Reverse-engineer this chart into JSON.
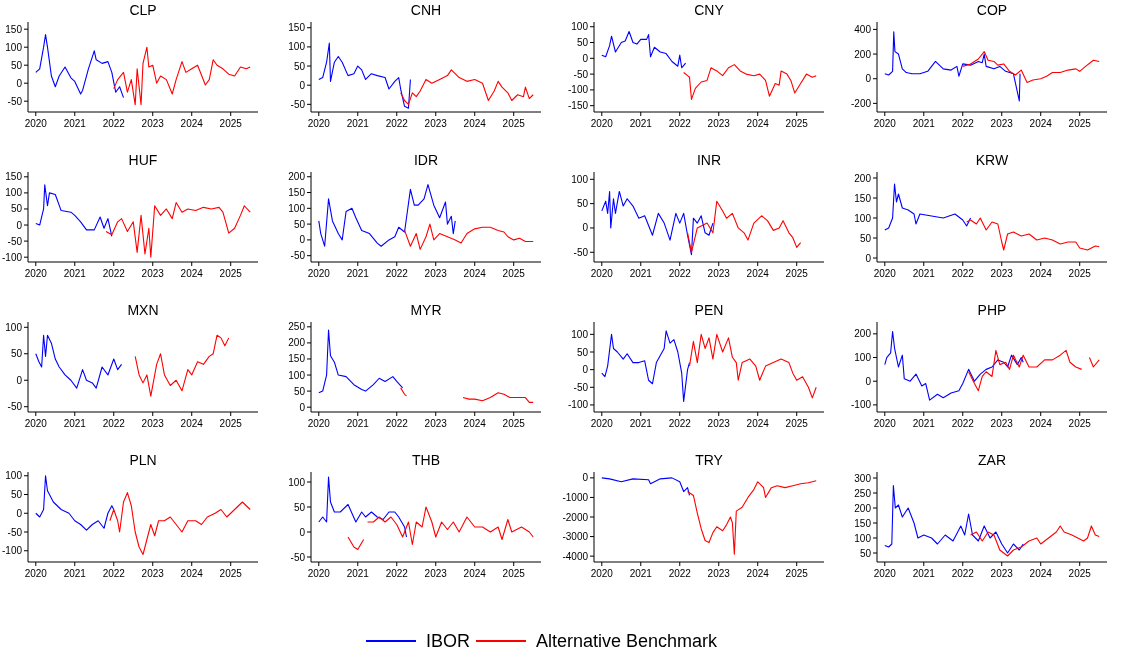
{
  "chart_data": [
    {
      "type": "line",
      "title": "CLP",
      "xlim": [
        2019.8,
        2025.7
      ],
      "xticks": [
        2020,
        2021,
        2022,
        2023,
        2024,
        2025
      ],
      "ylim": [
        -80,
        170
      ],
      "yticks": [
        -50,
        0,
        50,
        100,
        150
      ],
      "legend": "bottom",
      "series": [
        {
          "name": "IBOR",
          "color": "#0000ff",
          "x": [
            2020,
            2020.1,
            2020.2,
            2020.25,
            2020.3,
            2020.4,
            2020.5,
            2020.6,
            2020.75,
            2020.9,
            2021.0,
            2021.15,
            2021.2,
            2021.35,
            2021.5,
            2021.55,
            2021.7,
            2021.85,
            2021.95,
            2022.05,
            2022.15,
            2022.25
          ],
          "values": [
            30,
            40,
            100,
            135,
            100,
            20,
            -10,
            20,
            45,
            15,
            5,
            -30,
            -20,
            40,
            90,
            65,
            55,
            60,
            30,
            -25,
            -10,
            -40
          ]
        },
        {
          "name": "Alternative Benchmark",
          "color": "#ff0000",
          "x": [
            2022.0,
            2022.1,
            2022.25,
            2022.35,
            2022.45,
            2022.55,
            2022.6,
            2022.7,
            2022.75,
            2022.85,
            2022.9,
            2023.0,
            2023.1,
            2023.2,
            2023.35,
            2023.5,
            2023.6,
            2023.75,
            2023.85,
            2024.0,
            2024.15,
            2024.35,
            2024.45,
            2024.55,
            2024.65,
            2024.8,
            2024.95,
            2025.1,
            2025.25,
            2025.4,
            2025.5
          ],
          "values": [
            -15,
            10,
            30,
            -25,
            10,
            -60,
            40,
            -60,
            55,
            100,
            45,
            50,
            0,
            20,
            10,
            -30,
            10,
            60,
            30,
            40,
            50,
            -5,
            10,
            65,
            50,
            40,
            25,
            20,
            45,
            40,
            45
          ]
        }
      ]
    },
    {
      "type": "line",
      "title": "CNH",
      "xlim": [
        2019.8,
        2025.7
      ],
      "xticks": [
        2020,
        2021,
        2022,
        2023,
        2024,
        2025
      ],
      "ylim": [
        -70,
        165
      ],
      "yticks": [
        -50,
        0,
        50,
        100,
        150
      ],
      "series": [
        {
          "name": "IBOR",
          "color": "#0000ff",
          "x": [
            2020,
            2020.1,
            2020.2,
            2020.27,
            2020.3,
            2020.4,
            2020.5,
            2020.6,
            2020.75,
            2020.9,
            2021.0,
            2021.1,
            2021.2,
            2021.35,
            2021.5,
            2021.7,
            2021.8,
            2021.95,
            2022.05,
            2022.1,
            2022.2,
            2022.3,
            2022.35
          ],
          "values": [
            15,
            20,
            60,
            110,
            10,
            60,
            75,
            60,
            25,
            30,
            50,
            40,
            15,
            30,
            25,
            20,
            -10,
            10,
            20,
            -10,
            -55,
            -60,
            15
          ]
        },
        {
          "name": "Alternative Benchmark",
          "color": "#ff0000",
          "x": [
            2022.1,
            2022.2,
            2022.3,
            2022.4,
            2022.5,
            2022.6,
            2022.75,
            2022.9,
            2023.1,
            2023.3,
            2023.4,
            2023.6,
            2023.8,
            2024.0,
            2024.2,
            2024.35,
            2024.5,
            2024.6,
            2024.7,
            2024.85,
            2024.95,
            2025.1,
            2025.25,
            2025.3,
            2025.4,
            2025.5
          ],
          "values": [
            -20,
            -40,
            -50,
            -20,
            -30,
            -15,
            15,
            5,
            15,
            25,
            40,
            20,
            10,
            15,
            5,
            -40,
            -15,
            10,
            -5,
            -20,
            -40,
            -25,
            -30,
            -5,
            -35,
            -25
          ]
        }
      ]
    },
    {
      "type": "line",
      "title": "CNY",
      "xlim": [
        2019.8,
        2025.7
      ],
      "xticks": [
        2020,
        2021,
        2022,
        2023,
        2024,
        2025
      ],
      "ylim": [
        -170,
        115
      ],
      "yticks": [
        -150,
        -100,
        -50,
        0,
        50,
        100
      ],
      "series": [
        {
          "name": "IBOR",
          "color": "#0000ff",
          "x": [
            2020,
            2020.1,
            2020.2,
            2020.25,
            2020.35,
            2020.5,
            2020.6,
            2020.7,
            2020.8,
            2020.9,
            2021.0,
            2021.15,
            2021.2,
            2021.25,
            2021.35,
            2021.5,
            2021.65,
            2021.8,
            2021.95,
            2022.0,
            2022.05,
            2022.15
          ],
          "values": [
            10,
            5,
            40,
            70,
            20,
            50,
            55,
            85,
            50,
            45,
            60,
            60,
            75,
            5,
            35,
            20,
            15,
            -10,
            -25,
            10,
            -30,
            -15
          ]
        },
        {
          "name": "Alternative Benchmark",
          "color": "#ff0000",
          "x": [
            2022.1,
            2022.2,
            2022.25,
            2022.3,
            2022.4,
            2022.55,
            2022.7,
            2022.8,
            2022.95,
            2023.1,
            2023.25,
            2023.4,
            2023.55,
            2023.7,
            2023.9,
            2024.05,
            2024.2,
            2024.3,
            2024.45,
            2024.55,
            2024.6,
            2024.75,
            2024.85,
            2024.95,
            2025.1,
            2025.25,
            2025.4,
            2025.5
          ],
          "values": [
            -45,
            -55,
            -60,
            -130,
            -95,
            -75,
            -70,
            -30,
            -40,
            -55,
            -30,
            -20,
            -40,
            -50,
            -55,
            -50,
            -70,
            -120,
            -80,
            -85,
            -40,
            -50,
            -70,
            -110,
            -80,
            -50,
            -60,
            -55
          ]
        }
      ]
    },
    {
      "type": "line",
      "title": "COP",
      "xlim": [
        2019.8,
        2025.7
      ],
      "xticks": [
        2020,
        2021,
        2022,
        2023,
        2024,
        2025
      ],
      "ylim": [
        -270,
        460
      ],
      "yticks": [
        -200,
        0,
        200,
        400
      ],
      "series": [
        {
          "name": "IBOR",
          "color": "#0000ff",
          "x": [
            2020,
            2020.1,
            2020.2,
            2020.23,
            2020.26,
            2020.35,
            2020.45,
            2020.55,
            2020.7,
            2020.9,
            2021.1,
            2021.3,
            2021.5,
            2021.7,
            2021.85,
            2021.9,
            2022.0,
            2022.2,
            2022.4,
            2022.5,
            2022.55,
            2022.6,
            2022.8,
            2022.95,
            2023.1,
            2023.3,
            2023.45,
            2023.47
          ],
          "values": [
            40,
            30,
            60,
            380,
            220,
            200,
            80,
            50,
            40,
            40,
            60,
            140,
            80,
            70,
            100,
            20,
            120,
            110,
            140,
            130,
            200,
            100,
            80,
            100,
            60,
            40,
            -180,
            40
          ]
        },
        {
          "name": "Alternative Benchmark",
          "color": "#ff0000",
          "x": [
            2022.0,
            2022.2,
            2022.4,
            2022.55,
            2022.65,
            2022.8,
            2022.9,
            2023.05,
            2023.2,
            2023.35,
            2023.5,
            2023.65,
            2023.8,
            2024.0,
            2024.15,
            2024.3,
            2024.5,
            2024.7,
            2024.9,
            2025.0,
            2025.15,
            2025.35,
            2025.5
          ],
          "values": [
            100,
            120,
            160,
            220,
            150,
            140,
            110,
            120,
            60,
            30,
            70,
            -30,
            -10,
            0,
            20,
            50,
            50,
            70,
            80,
            60,
            100,
            150,
            140
          ]
        }
      ]
    },
    {
      "type": "line",
      "title": "HUF",
      "xlim": [
        2019.8,
        2025.7
      ],
      "xticks": [
        2020,
        2021,
        2022,
        2023,
        2024,
        2025
      ],
      "ylim": [
        -115,
        165
      ],
      "yticks": [
        -100,
        -50,
        0,
        50,
        100,
        150
      ],
      "series": [
        {
          "name": "IBOR",
          "color": "#0000ff",
          "x": [
            2020,
            2020.1,
            2020.2,
            2020.23,
            2020.3,
            2020.35,
            2020.5,
            2020.65,
            2020.9,
            2021.0,
            2021.15,
            2021.3,
            2021.5,
            2021.65,
            2021.75,
            2021.85,
            2021.95
          ],
          "values": [
            5,
            0,
            50,
            125,
            60,
            100,
            95,
            45,
            40,
            30,
            10,
            -15,
            -15,
            25,
            -10,
            20,
            -35
          ]
        },
        {
          "name": "Alternative Benchmark",
          "color": "#ff0000",
          "x": [
            2021.8,
            2021.95,
            2022.1,
            2022.2,
            2022.35,
            2022.5,
            2022.6,
            2022.7,
            2022.8,
            2022.9,
            2022.95,
            2023.05,
            2023.2,
            2023.35,
            2023.5,
            2023.6,
            2023.75,
            2023.9,
            2024.1,
            2024.3,
            2024.5,
            2024.7,
            2024.8,
            2024.95,
            2025.1,
            2025.25,
            2025.35,
            2025.5
          ],
          "values": [
            -20,
            -30,
            10,
            20,
            -20,
            10,
            -85,
            30,
            -90,
            -10,
            -100,
            60,
            30,
            50,
            20,
            70,
            40,
            50,
            45,
            55,
            50,
            55,
            40,
            -25,
            -10,
            30,
            60,
            40
          ]
        }
      ]
    },
    {
      "type": "line",
      "title": "IDR",
      "xlim": [
        2019.8,
        2025.7
      ],
      "xticks": [
        2020,
        2021,
        2022,
        2023,
        2024,
        2025
      ],
      "ylim": [
        -70,
        215
      ],
      "yticks": [
        -50,
        0,
        50,
        100,
        150,
        200
      ],
      "series": [
        {
          "name": "IBOR",
          "color": "#0000ff",
          "x": [
            2020,
            2020.05,
            2020.15,
            2020.25,
            2020.35,
            2020.5,
            2020.6,
            2020.7,
            2020.85,
            2020.95,
            2021.1,
            2021.3,
            2021.5,
            2021.6,
            2021.8,
            2021.95,
            2022.05,
            2022.2,
            2022.35,
            2022.45,
            2022.55,
            2022.7,
            2022.8,
            2022.95,
            2023.1,
            2023.25,
            2023.3,
            2023.4,
            2023.45,
            2023.5
          ],
          "values": [
            60,
            20,
            -20,
            130,
            60,
            20,
            0,
            90,
            100,
            70,
            30,
            20,
            -10,
            -20,
            0,
            10,
            40,
            25,
            160,
            110,
            110,
            130,
            175,
            110,
            70,
            120,
            50,
            75,
            20,
            60
          ]
        },
        {
          "name": "Alternative Benchmark",
          "color": "#ff0000",
          "x": [
            2022.2,
            2022.35,
            2022.5,
            2022.6,
            2022.75,
            2022.85,
            2022.95,
            2023.1,
            2023.3,
            2023.5,
            2023.65,
            2023.8,
            2024.0,
            2024.2,
            2024.4,
            2024.6,
            2024.75,
            2024.85,
            2025.0,
            2025.15,
            2025.3,
            2025.5
          ],
          "values": [
            30,
            -20,
            20,
            -30,
            10,
            50,
            0,
            20,
            10,
            0,
            -10,
            20,
            35,
            40,
            40,
            30,
            25,
            10,
            0,
            5,
            -5,
            -5
          ]
        }
      ]
    },
    {
      "type": "line",
      "title": "INR",
      "xlim": [
        2019.8,
        2025.7
      ],
      "xticks": [
        2020,
        2021,
        2022,
        2023,
        2024,
        2025
      ],
      "ylim": [
        -70,
        115
      ],
      "yticks": [
        -50,
        0,
        50,
        100
      ],
      "series": [
        {
          "name": "IBOR",
          "color": "#0000ff",
          "x": [
            2020,
            2020.1,
            2020.15,
            2020.2,
            2020.23,
            2020.3,
            2020.35,
            2020.45,
            2020.55,
            2020.65,
            2020.8,
            2020.95,
            2021.1,
            2021.3,
            2021.45,
            2021.6,
            2021.75,
            2021.9,
            2022.0,
            2022.1,
            2022.2,
            2022.3,
            2022.35,
            2022.45,
            2022.55,
            2022.65,
            2022.75,
            2022.85
          ],
          "values": [
            35,
            55,
            30,
            75,
            0,
            60,
            30,
            75,
            45,
            60,
            45,
            20,
            25,
            -15,
            30,
            10,
            -25,
            30,
            10,
            30,
            -15,
            -55,
            20,
            10,
            25,
            -10,
            -15,
            10
          ]
        },
        {
          "name": "Alternative Benchmark",
          "color": "#ff0000",
          "x": [
            2022.2,
            2022.3,
            2022.45,
            2022.7,
            2022.85,
            2022.95,
            2023.1,
            2023.2,
            2023.35,
            2023.5,
            2023.65,
            2023.75,
            2023.9,
            2024.1,
            2024.25,
            2024.4,
            2024.55,
            2024.65,
            2024.8,
            2024.9,
            2025.0,
            2025.1
          ],
          "values": [
            -10,
            -50,
            0,
            10,
            -10,
            55,
            35,
            20,
            30,
            0,
            -10,
            -25,
            10,
            25,
            15,
            -5,
            0,
            15,
            -10,
            -20,
            -40,
            -30
          ]
        }
      ]
    },
    {
      "type": "line",
      "title": "KRW",
      "xlim": [
        2019.8,
        2025.7
      ],
      "xticks": [
        2020,
        2021,
        2022,
        2023,
        2024,
        2025
      ],
      "ylim": [
        -10,
        215
      ],
      "yticks": [
        0,
        50,
        100,
        150,
        200
      ],
      "series": [
        {
          "name": "IBOR",
          "color": "#0000ff",
          "x": [
            2020,
            2020.1,
            2020.2,
            2020.25,
            2020.3,
            2020.35,
            2020.45,
            2020.6,
            2020.75,
            2020.8,
            2020.9,
            2021.2,
            2021.5,
            2021.8,
            2022.0,
            2022.1,
            2022.2
          ],
          "values": [
            70,
            75,
            100,
            185,
            140,
            160,
            125,
            120,
            110,
            85,
            110,
            105,
            100,
            110,
            95,
            80,
            100
          ]
        },
        {
          "name": "Alternative Benchmark",
          "color": "#ff0000",
          "x": [
            2022.1,
            2022.2,
            2022.35,
            2022.45,
            2022.6,
            2022.75,
            2022.9,
            2023.0,
            2023.05,
            2023.15,
            2023.3,
            2023.5,
            2023.7,
            2023.9,
            2024.1,
            2024.3,
            2024.5,
            2024.7,
            2024.9,
            2025.0,
            2025.2,
            2025.4,
            2025.5
          ],
          "values": [
            90,
            95,
            85,
            100,
            70,
            90,
            85,
            40,
            20,
            60,
            65,
            55,
            60,
            45,
            50,
            45,
            35,
            40,
            40,
            25,
            20,
            30,
            28
          ]
        }
      ]
    },
    {
      "type": "line",
      "title": "MXN",
      "xlim": [
        2019.8,
        2025.7
      ],
      "xticks": [
        2020,
        2021,
        2022,
        2023,
        2024,
        2025
      ],
      "ylim": [
        -60,
        110
      ],
      "yticks": [
        -50,
        0,
        50,
        100
      ],
      "series": [
        {
          "name": "IBOR",
          "color": "#0000ff",
          "x": [
            2020,
            2020.08,
            2020.15,
            2020.2,
            2020.25,
            2020.3,
            2020.4,
            2020.5,
            2020.6,
            2020.75,
            2020.9,
            2021.05,
            2021.2,
            2021.3,
            2021.45,
            2021.55,
            2021.7,
            2021.85,
            2022.0,
            2022.1,
            2022.2
          ],
          "values": [
            50,
            35,
            25,
            85,
            45,
            85,
            70,
            40,
            25,
            10,
            0,
            -15,
            20,
            0,
            -5,
            -15,
            25,
            10,
            40,
            20,
            30
          ]
        },
        {
          "name": "Alternative Benchmark",
          "color": "#ff0000",
          "x": [
            2022.55,
            2022.65,
            2022.75,
            2022.85,
            2022.95,
            2023.1,
            2023.2,
            2023.3,
            2023.45,
            2023.6,
            2023.75,
            2023.9,
            2024.0,
            2024.15,
            2024.3,
            2024.45,
            2024.55,
            2024.65,
            2024.75,
            2024.85,
            2024.95
          ],
          "values": [
            45,
            10,
            -5,
            10,
            -30,
            30,
            50,
            10,
            -10,
            0,
            -20,
            20,
            10,
            35,
            30,
            45,
            50,
            85,
            80,
            65,
            80
          ]
        }
      ]
    },
    {
      "type": "line",
      "title": "MYR",
      "xlim": [
        2019.8,
        2025.7
      ],
      "xticks": [
        2020,
        2021,
        2022,
        2023,
        2024,
        2025
      ],
      "ylim": [
        -15,
        265
      ],
      "yticks": [
        0,
        50,
        100,
        150,
        200,
        250
      ],
      "series": [
        {
          "name": "IBOR",
          "color": "#0000ff",
          "x": [
            2020,
            2020.1,
            2020.2,
            2020.25,
            2020.3,
            2020.4,
            2020.5,
            2020.7,
            2020.9,
            2021.1,
            2021.2,
            2021.4,
            2021.55,
            2021.7,
            2021.9,
            2022.0,
            2022.15
          ],
          "values": [
            45,
            50,
            100,
            240,
            160,
            140,
            100,
            95,
            70,
            55,
            50,
            70,
            90,
            80,
            95,
            80,
            60
          ]
        },
        {
          "name": "Alternative Benchmark",
          "color": "#ff0000",
          "x": [
            2022.1,
            2022.2,
            2022.25,
            2023.0,
            2023.7,
            2023.85,
            2024.0,
            2024.2,
            2024.4,
            2024.6,
            2024.75,
            2024.9,
            2025.1,
            2025.3,
            2025.4,
            2025.5
          ],
          "values": [
            60,
            40,
            35,
            null,
            30,
            25,
            25,
            20,
            30,
            45,
            40,
            30,
            30,
            30,
            15,
            15
          ]
        }
      ]
    },
    {
      "type": "line",
      "title": "PEN",
      "xlim": [
        2019.8,
        2025.7
      ],
      "xticks": [
        2020,
        2021,
        2022,
        2023,
        2024,
        2025
      ],
      "ylim": [
        -120,
        135
      ],
      "yticks": [
        -100,
        -50,
        0,
        50,
        100
      ],
      "series": [
        {
          "name": "IBOR",
          "color": "#0000ff",
          "x": [
            2020,
            2020.08,
            2020.15,
            2020.25,
            2020.3,
            2020.4,
            2020.55,
            2020.65,
            2020.8,
            2020.95,
            2021.1,
            2021.2,
            2021.3,
            2021.4,
            2021.5,
            2021.6,
            2021.65,
            2021.75,
            2021.85,
            2021.95,
            2022.05,
            2022.1,
            2022.2,
            2022.25
          ],
          "values": [
            -10,
            -20,
            10,
            100,
            60,
            50,
            30,
            45,
            20,
            20,
            25,
            -30,
            -40,
            20,
            40,
            60,
            110,
            75,
            85,
            50,
            -10,
            -90,
            0,
            20
          ]
        },
        {
          "name": "Alternative Benchmark",
          "color": "#ff0000",
          "x": [
            2022.25,
            2022.35,
            2022.45,
            2022.55,
            2022.65,
            2022.75,
            2022.85,
            2022.95,
            2023.1,
            2023.25,
            2023.35,
            2023.45,
            2023.5,
            2023.6,
            2023.8,
            2023.95,
            2024.05,
            2024.2,
            2024.4,
            2024.6,
            2024.8,
            2024.9,
            2025.0,
            2025.15,
            2025.3,
            2025.4,
            2025.5
          ],
          "values": [
            10,
            80,
            20,
            100,
            60,
            90,
            30,
            100,
            50,
            90,
            35,
            20,
            -30,
            20,
            30,
            10,
            -30,
            10,
            20,
            30,
            20,
            -10,
            -30,
            -20,
            -50,
            -80,
            -50
          ]
        }
      ]
    },
    {
      "type": "line",
      "title": "PHP",
      "xlim": [
        2019.8,
        2025.7
      ],
      "xticks": [
        2020,
        2021,
        2022,
        2023,
        2024,
        2025
      ],
      "ylim": [
        -130,
        250
      ],
      "yticks": [
        -100,
        0,
        100,
        200
      ],
      "series": [
        {
          "name": "IBOR",
          "color": "#0000ff",
          "x": [
            2020,
            2020.05,
            2020.15,
            2020.2,
            2020.25,
            2020.35,
            2020.45,
            2020.5,
            2020.65,
            2020.8,
            2020.95,
            2021.05,
            2021.15,
            2021.35,
            2021.5,
            2021.7,
            2021.9,
            2022.0,
            2022.15,
            2022.3,
            2022.45,
            2022.6,
            2022.75,
            2022.9,
            2023.05,
            2023.15,
            2023.25,
            2023.4,
            2023.5,
            2023.55
          ],
          "values": [
            70,
            100,
            120,
            210,
            140,
            60,
            110,
            10,
            0,
            30,
            -20,
            -10,
            -80,
            -55,
            -70,
            -50,
            -40,
            -10,
            50,
            0,
            30,
            50,
            60,
            90,
            80,
            60,
            110,
            70,
            100,
            80
          ]
        },
        {
          "name": "Alternative Benchmark",
          "color": "#ff0000",
          "x": [
            2022.15,
            2022.3,
            2022.4,
            2022.5,
            2022.6,
            2022.75,
            2022.85,
            2022.95,
            2023.1,
            2023.2,
            2023.3,
            2023.45,
            2023.55,
            2023.7,
            2023.9,
            2024.1,
            2024.3,
            2024.5,
            2024.65,
            2024.75,
            2024.9,
            2025.05,
            2025.1,
            2025.25,
            2025.35,
            2025.5
          ],
          "values": [
            40,
            -10,
            -40,
            20,
            40,
            20,
            130,
            70,
            80,
            50,
            110,
            60,
            110,
            60,
            60,
            90,
            90,
            110,
            130,
            80,
            60,
            50,
            null,
            100,
            60,
            90
          ]
        }
      ]
    },
    {
      "type": "line",
      "title": "PLN",
      "xlim": [
        2019.8,
        2025.7
      ],
      "xticks": [
        2020,
        2021,
        2022,
        2023,
        2024,
        2025
      ],
      "ylim": [
        -130,
        110
      ],
      "yticks": [
        -100,
        -50,
        0,
        50,
        100
      ],
      "series": [
        {
          "name": "IBOR",
          "color": "#0000ff",
          "x": [
            2020,
            2020.1,
            2020.2,
            2020.25,
            2020.3,
            2020.45,
            2020.65,
            2020.85,
            2021.0,
            2021.15,
            2021.3,
            2021.45,
            2021.6,
            2021.75,
            2021.85,
            2021.95,
            2022.0
          ],
          "values": [
            0,
            -10,
            10,
            100,
            60,
            30,
            10,
            0,
            -20,
            -30,
            -45,
            -30,
            -20,
            -40,
            0,
            20,
            10
          ]
        },
        {
          "name": "Alternative Benchmark",
          "color": "#ff0000",
          "x": [
            2021.9,
            2022.0,
            2022.1,
            2022.15,
            2022.25,
            2022.35,
            2022.45,
            2022.55,
            2022.65,
            2022.75,
            2022.85,
            2022.95,
            2023.05,
            2023.15,
            2023.3,
            2023.45,
            2023.6,
            2023.75,
            2023.9,
            2024.1,
            2024.25,
            2024.4,
            2024.6,
            2024.75,
            2024.9,
            2025.1,
            2025.3,
            2025.5
          ],
          "values": [
            -20,
            10,
            -20,
            -50,
            30,
            55,
            20,
            -50,
            -90,
            -110,
            -70,
            -30,
            -60,
            -20,
            -20,
            -10,
            -30,
            -50,
            -20,
            -20,
            -30,
            -10,
            0,
            10,
            -10,
            10,
            30,
            10
          ]
        }
      ]
    },
    {
      "type": "line",
      "title": "THB",
      "xlim": [
        2019.8,
        2025.7
      ],
      "xticks": [
        2020,
        2021,
        2022,
        2023,
        2024,
        2025
      ],
      "ylim": [
        -60,
        120
      ],
      "yticks": [
        -50,
        0,
        50,
        100
      ],
      "series": [
        {
          "name": "IBOR",
          "color": "#0000ff",
          "x": [
            2020,
            2020.1,
            2020.2,
            2020.25,
            2020.3,
            2020.4,
            2020.55,
            2020.75,
            2020.95,
            2021.1,
            2021.2,
            2021.35,
            2021.5,
            2021.65,
            2021.8,
            2021.95,
            2022.05,
            2022.2,
            2022.25
          ],
          "values": [
            20,
            30,
            20,
            110,
            60,
            40,
            40,
            55,
            20,
            40,
            30,
            40,
            30,
            25,
            40,
            40,
            30,
            10,
            -10
          ]
        },
        {
          "name": "Alternative Benchmark",
          "color": "#ff0000",
          "x": [
            2020.75,
            2020.9,
            2021.0,
            2021.15,
            2021.2,
            2021.25,
            2021.4,
            2021.55,
            2021.7,
            2021.85,
            2022.0,
            2022.15,
            2022.3,
            2022.4,
            2022.5,
            2022.65,
            2022.75,
            2022.9,
            2023.0,
            2023.15,
            2023.3,
            2023.45,
            2023.6,
            2023.8,
            2024.0,
            2024.2,
            2024.4,
            2024.6,
            2024.7,
            2024.85,
            2024.95,
            2025.2,
            2025.4,
            2025.5
          ],
          "values": [
            -10,
            -30,
            -35,
            -15,
            null,
            20,
            20,
            30,
            20,
            30,
            15,
            -10,
            20,
            -25,
            20,
            10,
            50,
            20,
            -10,
            20,
            5,
            20,
            0,
            30,
            10,
            10,
            0,
            10,
            -15,
            25,
            0,
            10,
            0,
            -10
          ]
        }
      ]
    },
    {
      "type": "line",
      "title": "TRY",
      "xlim": [
        2019.8,
        2025.7
      ],
      "xticks": [
        2020,
        2021,
        2022,
        2023,
        2024,
        2025
      ],
      "ylim": [
        -4300,
        300
      ],
      "yticks": [
        -4000,
        -3000,
        -2000,
        -1000,
        0
      ],
      "series": [
        {
          "name": "IBOR",
          "color": "#0000ff",
          "x": [
            2020,
            2020.2,
            2020.5,
            2020.8,
            2021.2,
            2021.25,
            2021.5,
            2021.8,
            2022.0,
            2022.1,
            2022.2,
            2022.25
          ],
          "values": [
            0,
            -50,
            -200,
            -50,
            -100,
            -300,
            -50,
            0,
            -200,
            -700,
            -500,
            -900
          ]
        },
        {
          "name": "Alternative Benchmark",
          "color": "#ff0000",
          "x": [
            2022.2,
            2022.35,
            2022.45,
            2022.55,
            2022.65,
            2022.75,
            2022.85,
            2022.95,
            2023.1,
            2023.2,
            2023.3,
            2023.35,
            2023.4,
            2023.45,
            2023.6,
            2023.75,
            2023.9,
            2024.0,
            2024.15,
            2024.2,
            2024.35,
            2024.5,
            2024.7,
            2024.9,
            2025.1,
            2025.3,
            2025.5
          ],
          "values": [
            -700,
            -900,
            -1800,
            -2600,
            -3200,
            -3300,
            -2800,
            -2500,
            -2700,
            -2400,
            -2000,
            -2300,
            -3900,
            -1700,
            -1500,
            -1000,
            -600,
            -200,
            -500,
            -1000,
            -500,
            -400,
            -500,
            -400,
            -300,
            -250,
            -150
          ]
        }
      ]
    },
    {
      "type": "line",
      "title": "ZAR",
      "xlim": [
        2019.8,
        2025.7
      ],
      "xticks": [
        2020,
        2021,
        2022,
        2023,
        2024,
        2025
      ],
      "ylim": [
        20,
        320
      ],
      "yticks": [
        50,
        100,
        150,
        200,
        250,
        300
      ],
      "series": [
        {
          "name": "IBOR",
          "color": "#0000ff",
          "x": [
            2020,
            2020.1,
            2020.18,
            2020.22,
            2020.27,
            2020.35,
            2020.45,
            2020.6,
            2020.75,
            2020.85,
            2021.0,
            2021.2,
            2021.35,
            2021.55,
            2021.75,
            2021.95,
            2022.05,
            2022.15,
            2022.25,
            2022.4,
            2022.55,
            2022.7,
            2022.85,
            2023.0,
            2023.15,
            2023.3,
            2023.45,
            2023.55
          ],
          "values": [
            75,
            70,
            80,
            275,
            200,
            210,
            170,
            200,
            150,
            100,
            110,
            100,
            80,
            110,
            90,
            140,
            110,
            180,
            110,
            90,
            140,
            100,
            120,
            80,
            50,
            80,
            60,
            80
          ]
        },
        {
          "name": "Alternative Benchmark",
          "color": "#ff0000",
          "x": [
            2022.2,
            2022.35,
            2022.5,
            2022.65,
            2022.8,
            2022.95,
            2023.15,
            2023.3,
            2023.5,
            2023.7,
            2023.9,
            2024.0,
            2024.2,
            2024.4,
            2024.5,
            2024.6,
            2024.8,
            2024.95,
            2025.1,
            2025.2,
            2025.3,
            2025.4,
            2025.5
          ],
          "values": [
            110,
            120,
            90,
            120,
            110,
            60,
            40,
            60,
            70,
            90,
            100,
            80,
            100,
            120,
            140,
            120,
            110,
            100,
            90,
            100,
            140,
            110,
            105
          ]
        }
      ]
    }
  ]
}
